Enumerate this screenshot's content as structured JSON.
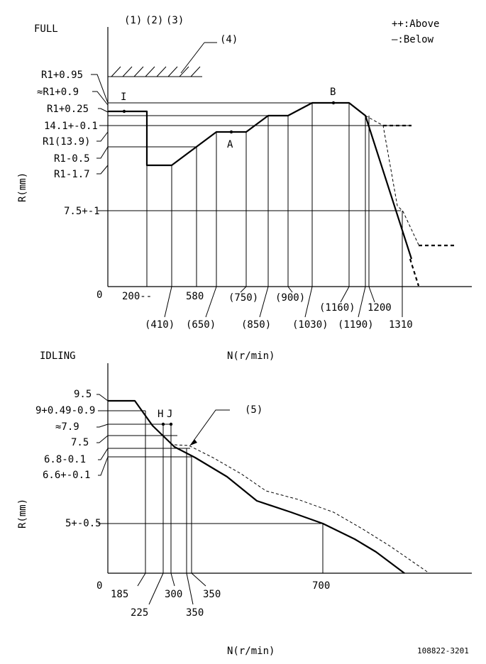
{
  "chart_data": [
    {
      "type": "line",
      "title": "FULL",
      "xlabel": "N(r/min)",
      "ylabel": "R(mm)",
      "origin_label": "0",
      "header_labels": [
        "(1)",
        "(2)",
        "(3)"
      ],
      "stop_label": "(4)",
      "legend": {
        "above": "++:Above",
        "below": "—:Below",
        "placement": "top-right"
      },
      "y_ticks": [
        "R1+0.95",
        "≈R1+0.9",
        "R1+0.25",
        "14.1+-0.1",
        "R1(13.9)",
        "R1-0.5",
        "R1-1.7",
        "7.5+-1"
      ],
      "x_ticks_upper": [
        "200--",
        "580",
        "(750)",
        "(900)",
        "(1160)",
        "1200"
      ],
      "x_ticks_lower": [
        "(410)",
        "(650)",
        "(850)",
        "(1030)",
        "(1190)",
        "1310"
      ],
      "point_labels": [
        "I",
        "A",
        "B"
      ],
      "series": [
        {
          "values": [
            [
              0,
              "R1+0.25"
            ],
            [
              200,
              "R1+0.25"
            ],
            [
              200,
              "R1-1.7"
            ],
            [
              410,
              "R1-1.7"
            ],
            [
              750,
              "R1(13.9)"
            ],
            [
              850,
              "R1(13.9)"
            ],
            [
              900,
              "14.1+-0.1"
            ],
            [
              1030,
              "14.1+-0.1"
            ],
            [
              1160,
              "R1+0.25"
            ],
            [
              1190,
              "R1+0.25"
            ],
            [
              1310,
              "7.5+-1"
            ]
          ]
        }
      ]
    },
    {
      "type": "line",
      "title": "IDLING",
      "xlabel": "N(r/min)",
      "ylabel": "R(mm)",
      "origin_label": "0",
      "callout": "(5)",
      "y_ticks": [
        "9.5",
        "9+0.49-0.9",
        "≈7.9",
        "7.5",
        "6.8-0.1",
        "6.6+-0.1",
        "5+-0.5"
      ],
      "x_ticks_upper": [
        "185",
        "300",
        "350",
        "700"
      ],
      "x_ticks_lower": [
        "225",
        "350"
      ],
      "point_labels": [
        "H",
        "J"
      ],
      "series": [
        {
          "values": [
            [
              0,
              9.5
            ],
            [
              185,
              9.5
            ],
            [
              225,
              8.5
            ],
            [
              300,
              7.9
            ],
            [
              350,
              6.8
            ],
            [
              700,
              5.0
            ]
          ]
        }
      ]
    }
  ],
  "footer": {
    "code": "108822-3201"
  }
}
